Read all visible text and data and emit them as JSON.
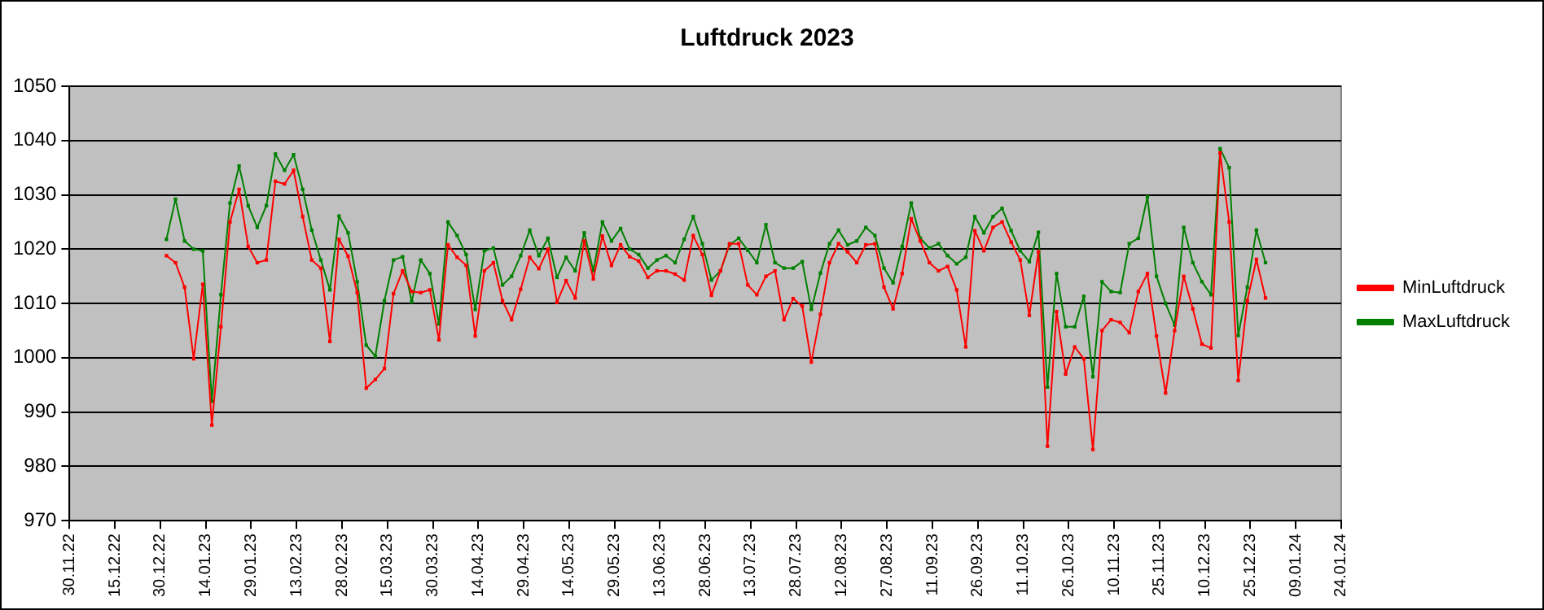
{
  "chart_data": {
    "type": "line",
    "title": "Luftdruck 2023",
    "x": [
      "2023-01-01",
      "2023-01-04",
      "2023-01-07",
      "2023-01-10",
      "2023-01-13",
      "2023-01-16",
      "2023-01-19",
      "2023-01-22",
      "2023-01-25",
      "2023-01-28",
      "2023-01-31",
      "2023-02-03",
      "2023-02-06",
      "2023-02-09",
      "2023-02-12",
      "2023-02-15",
      "2023-02-18",
      "2023-02-21",
      "2023-02-24",
      "2023-02-27",
      "2023-03-02",
      "2023-03-05",
      "2023-03-08",
      "2023-03-11",
      "2023-03-14",
      "2023-03-17",
      "2023-03-20",
      "2023-03-23",
      "2023-03-26",
      "2023-03-29",
      "2023-04-01",
      "2023-04-04",
      "2023-04-07",
      "2023-04-10",
      "2023-04-13",
      "2023-04-16",
      "2023-04-19",
      "2023-04-22",
      "2023-04-25",
      "2023-04-28",
      "2023-05-01",
      "2023-05-04",
      "2023-05-07",
      "2023-05-10",
      "2023-05-13",
      "2023-05-16",
      "2023-05-19",
      "2023-05-22",
      "2023-05-25",
      "2023-05-28",
      "2023-05-31",
      "2023-06-03",
      "2023-06-06",
      "2023-06-09",
      "2023-06-12",
      "2023-06-15",
      "2023-06-18",
      "2023-06-21",
      "2023-06-24",
      "2023-06-27",
      "2023-06-30",
      "2023-07-03",
      "2023-07-06",
      "2023-07-09",
      "2023-07-12",
      "2023-07-15",
      "2023-07-18",
      "2023-07-21",
      "2023-07-24",
      "2023-07-27",
      "2023-07-30",
      "2023-08-02",
      "2023-08-05",
      "2023-08-08",
      "2023-08-11",
      "2023-08-14",
      "2023-08-17",
      "2023-08-20",
      "2023-08-23",
      "2023-08-26",
      "2023-08-29",
      "2023-09-01",
      "2023-09-04",
      "2023-09-07",
      "2023-09-10",
      "2023-09-13",
      "2023-09-16",
      "2023-09-19",
      "2023-09-22",
      "2023-09-25",
      "2023-09-28",
      "2023-10-01",
      "2023-10-04",
      "2023-10-07",
      "2023-10-10",
      "2023-10-13",
      "2023-10-16",
      "2023-10-19",
      "2023-10-22",
      "2023-10-25",
      "2023-10-28",
      "2023-10-31",
      "2023-11-03",
      "2023-11-06",
      "2023-11-09",
      "2023-11-12",
      "2023-11-15",
      "2023-11-18",
      "2023-11-21",
      "2023-11-24",
      "2023-11-27",
      "2023-11-30",
      "2023-12-03",
      "2023-12-06",
      "2023-12-09",
      "2023-12-12",
      "2023-12-15",
      "2023-12-18",
      "2023-12-21",
      "2023-12-24",
      "2023-12-27",
      "2023-12-30"
    ],
    "series": [
      {
        "name": "MinLuftdruck",
        "color": "#ff0000",
        "values": [
          1018.8,
          1017.5,
          1013,
          999.8,
          1013.5,
          987.6,
          1005.7,
          1025,
          1031,
          1020.5,
          1017.5,
          1018,
          1032.5,
          1032,
          1034.5,
          1026,
          1018,
          1016.5,
          1003,
          1021.8,
          1018.7,
          1012,
          994.4,
          996,
          998,
          1011.8,
          1016,
          1012.2,
          1012,
          1012.5,
          1003.3,
          1020.8,
          1018.5,
          1017,
          1004,
          1016,
          1017.5,
          1010.5,
          1007,
          1012.6,
          1018.5,
          1016.4,
          1020,
          1010.2,
          1014.2,
          1011,
          1021.5,
          1014.5,
          1022.4,
          1017,
          1020.8,
          1018.6,
          1017.8,
          1014.8,
          1016,
          1016,
          1015.4,
          1014.3,
          1022.5,
          1019,
          1011.5,
          1016,
          1021,
          1021,
          1013.4,
          1011.6,
          1015,
          1016,
          1007,
          1010.9,
          1009.5,
          999.2,
          1008,
          1017.5,
          1021,
          1019.5,
          1017.5,
          1020.8,
          1021,
          1013,
          1009,
          1015.5,
          1025.6,
          1021.5,
          1017.5,
          1016,
          1016.8,
          1012.5,
          1002,
          1023.4,
          1019.7,
          1024,
          1025,
          1021.3,
          1018,
          1007.8,
          1019.5,
          983.7,
          1008.5,
          997,
          1002,
          999.8,
          983.1,
          1005,
          1007,
          1006.5,
          1004.6,
          1012.2,
          1015.5,
          1004,
          993.5,
          1005,
          1015,
          1009,
          1002.5,
          1001.8,
          1037.7,
          1025,
          995.8,
          1010.5,
          1018.1,
          1011
        ]
      },
      {
        "name": "MaxLuftdruck",
        "color": "#008000",
        "values": [
          1021.8,
          1029.2,
          1021.5,
          1020,
          1019.7,
          992,
          1011.6,
          1028.5,
          1035.3,
          1028,
          1024,
          1028,
          1037.5,
          1034.5,
          1037.4,
          1031,
          1023.5,
          1018,
          1012.5,
          1026.1,
          1023,
          1014,
          1002.3,
          1000.3,
          1010.5,
          1018,
          1018.6,
          1010.3,
          1018,
          1015.5,
          1006.2,
          1025,
          1022.5,
          1019,
          1008.9,
          1019.7,
          1020.2,
          1013.4,
          1015,
          1018.8,
          1023.5,
          1018.8,
          1022,
          1014.8,
          1018.5,
          1016,
          1023,
          1016,
          1025,
          1021.5,
          1023.8,
          1020,
          1019,
          1016.5,
          1018,
          1018.8,
          1017.5,
          1021.8,
          1026,
          1021,
          1014.3,
          1016,
          1020.8,
          1022,
          1019.8,
          1017.5,
          1024.5,
          1017.5,
          1016.5,
          1016.5,
          1017.7,
          1008.9,
          1015.6,
          1021,
          1023.5,
          1020.8,
          1021.5,
          1024,
          1022.5,
          1016.5,
          1013.8,
          1020.5,
          1028.5,
          1022,
          1020.2,
          1021,
          1018.8,
          1017.3,
          1018.5,
          1026,
          1023,
          1026,
          1027.5,
          1023.4,
          1019.7,
          1017.7,
          1023.1,
          994.6,
          1015.5,
          1005.7,
          1005.7,
          1011.3,
          996.5,
          1014,
          1012.2,
          1012,
          1021,
          1022,
          1029.6,
          1015,
          1010,
          1006,
          1024,
          1017.5,
          1014,
          1011.6,
          1038.5,
          1035,
          1004.1,
          1013,
          1023.5,
          1017.5
        ]
      }
    ],
    "xlim": [
      "2022-11-30",
      "2024-01-24"
    ],
    "xticks": [
      {
        "value": "2022-11-30",
        "label": "30.11.22"
      },
      {
        "value": "2022-12-15",
        "label": "15.12.22"
      },
      {
        "value": "2022-12-30",
        "label": "30.12.22"
      },
      {
        "value": "2023-01-14",
        "label": "14.01.23"
      },
      {
        "value": "2023-01-29",
        "label": "29.01.23"
      },
      {
        "value": "2023-02-13",
        "label": "13.02.23"
      },
      {
        "value": "2023-02-28",
        "label": "28.02.23"
      },
      {
        "value": "2023-03-15",
        "label": "15.03.23"
      },
      {
        "value": "2023-03-30",
        "label": "30.03.23"
      },
      {
        "value": "2023-04-14",
        "label": "14.04.23"
      },
      {
        "value": "2023-04-29",
        "label": "29.04.23"
      },
      {
        "value": "2023-05-14",
        "label": "14.05.23"
      },
      {
        "value": "2023-05-29",
        "label": "29.05.23"
      },
      {
        "value": "2023-06-13",
        "label": "13.06.23"
      },
      {
        "value": "2023-06-28",
        "label": "28.06.23"
      },
      {
        "value": "2023-07-13",
        "label": "13.07.23"
      },
      {
        "value": "2023-07-28",
        "label": "28.07.23"
      },
      {
        "value": "2023-08-12",
        "label": "12.08.23"
      },
      {
        "value": "2023-08-27",
        "label": "27.08.23"
      },
      {
        "value": "2023-09-11",
        "label": "11.09.23"
      },
      {
        "value": "2023-09-26",
        "label": "26.09.23"
      },
      {
        "value": "2023-10-11",
        "label": "11.10.23"
      },
      {
        "value": "2023-10-26",
        "label": "26.10.23"
      },
      {
        "value": "2023-11-10",
        "label": "10.11.23"
      },
      {
        "value": "2023-11-25",
        "label": "25.11.23"
      },
      {
        "value": "2023-12-10",
        "label": "10.12.23"
      },
      {
        "value": "2023-12-25",
        "label": "25.12.23"
      },
      {
        "value": "2024-01-09",
        "label": "09.01.24"
      },
      {
        "value": "2024-01-24",
        "label": "24.01.24"
      }
    ],
    "ylim": [
      970,
      1050
    ],
    "yticks": [
      970,
      980,
      990,
      1000,
      1010,
      1020,
      1030,
      1040,
      1050
    ],
    "grid": "y",
    "legend": "right",
    "marker": "square",
    "line_style": "solid"
  }
}
